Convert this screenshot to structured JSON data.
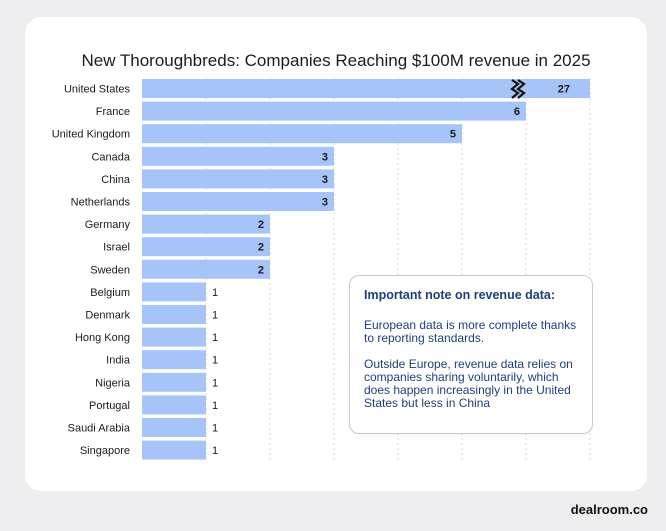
{
  "page": {
    "title": "New Thoroughbreds: Companies Reaching $100M revenue in 2025",
    "brand": "dealroom.co"
  },
  "note": {
    "title": "Important note on revenue data:",
    "paragraph1": "European data is more complete thanks to reporting standards.",
    "paragraph2": "Outside Europe, revenue data relies on companies sharing voluntarily, which does happen increasingly in the United States but less in China"
  },
  "colors": {
    "bar": "#a6c4f8",
    "grid": "#d4d7de",
    "text": "#1c1c1c",
    "note_text": "#1f3e7c"
  },
  "chart_data": {
    "type": "bar",
    "orientation": "horizontal",
    "title": "New Thoroughbreds: Companies Reaching $100M revenue in 2025",
    "xlabel": "",
    "ylabel": "",
    "axis_break": {
      "category": "United States",
      "marker": "zigzag"
    },
    "categories": [
      "United States",
      "France",
      "United Kingdom",
      "Canada",
      "China",
      "Netherlands",
      "Germany",
      "Israel",
      "Sweden",
      "Belgium",
      "Denmark",
      "Hong Kong",
      "India",
      "Nigeria",
      "Portugal",
      "Saudi Arabia",
      "Singapore"
    ],
    "values": [
      27,
      6,
      5,
      3,
      3,
      3,
      2,
      2,
      2,
      1,
      1,
      1,
      1,
      1,
      1,
      1,
      1
    ],
    "xlim": [
      0,
      7
    ],
    "grid": true
  }
}
